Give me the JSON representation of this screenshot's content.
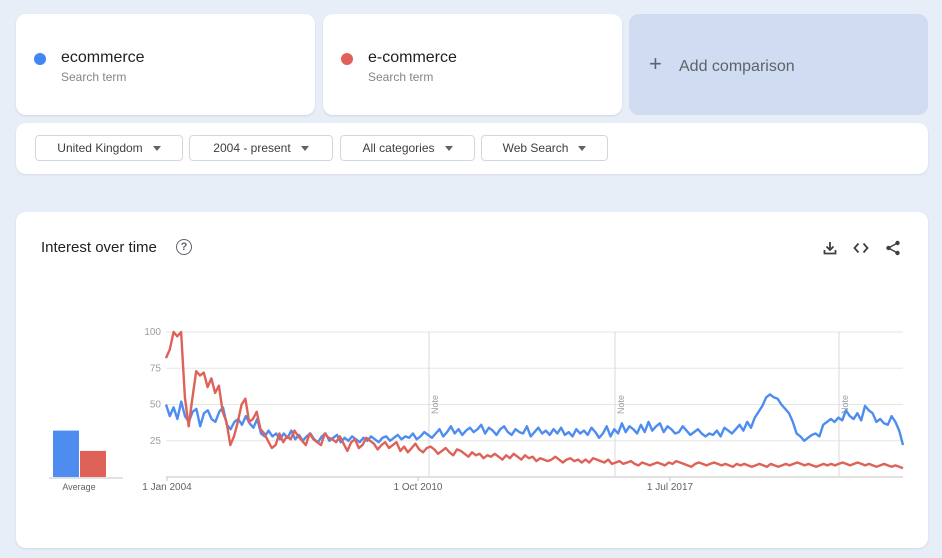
{
  "terms": [
    {
      "name": "ecommerce",
      "subtitle": "Search term",
      "color": "#4285f4"
    },
    {
      "name": "e-commerce",
      "subtitle": "Search term",
      "color": "#db4437"
    }
  ],
  "add_comparison": {
    "label": "Add comparison"
  },
  "filters": {
    "region": "United Kingdom",
    "time_range": "2004 - present",
    "category": "All categories",
    "search_type": "Web Search"
  },
  "panel": {
    "title": "Interest over time",
    "tools": [
      "download-icon",
      "embed-code-icon",
      "share-icon"
    ]
  },
  "chart_data": {
    "type": "line",
    "ylim": [
      0,
      100
    ],
    "y_ticks": [
      "100",
      "75",
      "50",
      "25"
    ],
    "x_tick_labels": [
      "1 Jan 2004",
      "1 Oct 2010",
      "1 Jul 2017"
    ],
    "notes": [
      "Note",
      "Note",
      "Note"
    ],
    "average": {
      "label": "Average",
      "values": [
        32,
        18
      ]
    },
    "series": [
      {
        "name": "ecommerce",
        "color": "#4285f4",
        "values": [
          50,
          42,
          48,
          40,
          52,
          42,
          38,
          45,
          47,
          35,
          44,
          46,
          40,
          38,
          45,
          48,
          36,
          33,
          38,
          40,
          36,
          42,
          37,
          34,
          40,
          30,
          28,
          32,
          28,
          30,
          26,
          30,
          27,
          32,
          26,
          29,
          25,
          28,
          30,
          26,
          24,
          28,
          30,
          25,
          27,
          29,
          24,
          27,
          25,
          28,
          26,
          24,
          27,
          25,
          28,
          26,
          24,
          27,
          28,
          25,
          27,
          29,
          26,
          28,
          27,
          30,
          26,
          28,
          31,
          29,
          27,
          30,
          33,
          28,
          31,
          35,
          30,
          33,
          29,
          32,
          34,
          31,
          33,
          36,
          30,
          34,
          32,
          29,
          33,
          35,
          31,
          29,
          33,
          31,
          30,
          35,
          28,
          31,
          34,
          30,
          32,
          29,
          33,
          30,
          34,
          29,
          31,
          28,
          33,
          30,
          32,
          29,
          34,
          31,
          27,
          30,
          35,
          28,
          33,
          30,
          37,
          31,
          35,
          33,
          30,
          36,
          31,
          38,
          32,
          35,
          37,
          31,
          35,
          33,
          30,
          31,
          35,
          32,
          29,
          31,
          33,
          30,
          28,
          30,
          29,
          32,
          28,
          34,
          32,
          30,
          33,
          36,
          32,
          38,
          34,
          41,
          45,
          49,
          55,
          57,
          55,
          54,
          50,
          47,
          44,
          38,
          30,
          28,
          25,
          27,
          29,
          30,
          28,
          36,
          38,
          40,
          38,
          41,
          39,
          46,
          42,
          40,
          44,
          39,
          49,
          46,
          44,
          38,
          40,
          37,
          36,
          42,
          38,
          32,
          22
        ]
      },
      {
        "name": "e-commerce",
        "color": "#db4437",
        "values": [
          82,
          88,
          100,
          97,
          100,
          55,
          35,
          55,
          73,
          70,
          72,
          62,
          68,
          58,
          63,
          45,
          38,
          22,
          28,
          38,
          50,
          54,
          38,
          40,
          45,
          33,
          30,
          25,
          20,
          22,
          30,
          24,
          28,
          26,
          32,
          28,
          25,
          22,
          30,
          26,
          24,
          22,
          30,
          27,
          26,
          24,
          28,
          23,
          18,
          24,
          26,
          20,
          22,
          27,
          25,
          23,
          19,
          22,
          24,
          20,
          22,
          24,
          18,
          21,
          17,
          20,
          23,
          19,
          17,
          20,
          21,
          19,
          16,
          18,
          20,
          17,
          15,
          19,
          18,
          16,
          14,
          17,
          15,
          16,
          13,
          15,
          14,
          16,
          14,
          12,
          15,
          13,
          16,
          14,
          12,
          15,
          13,
          14,
          11,
          13,
          12,
          11,
          12,
          14,
          12,
          10,
          12,
          13,
          11,
          12,
          10,
          12,
          10,
          13,
          12,
          11,
          10,
          12,
          9,
          10,
          11,
          9,
          10,
          11,
          9,
          8,
          10,
          9,
          8,
          9,
          10,
          9,
          8,
          10,
          9,
          11,
          10,
          9,
          8,
          7,
          9,
          10,
          9,
          8,
          9,
          10,
          9,
          8,
          9,
          8,
          7,
          9,
          8,
          9,
          8,
          7,
          8,
          9,
          8,
          7,
          9,
          8,
          7,
          8,
          9,
          8,
          9,
          10,
          9,
          8,
          9,
          8,
          7,
          8,
          9,
          8,
          9,
          8,
          9,
          10,
          9,
          8,
          9,
          10,
          9,
          8,
          9,
          8,
          7,
          8,
          9,
          8,
          7,
          8,
          7,
          6
        ]
      }
    ]
  }
}
